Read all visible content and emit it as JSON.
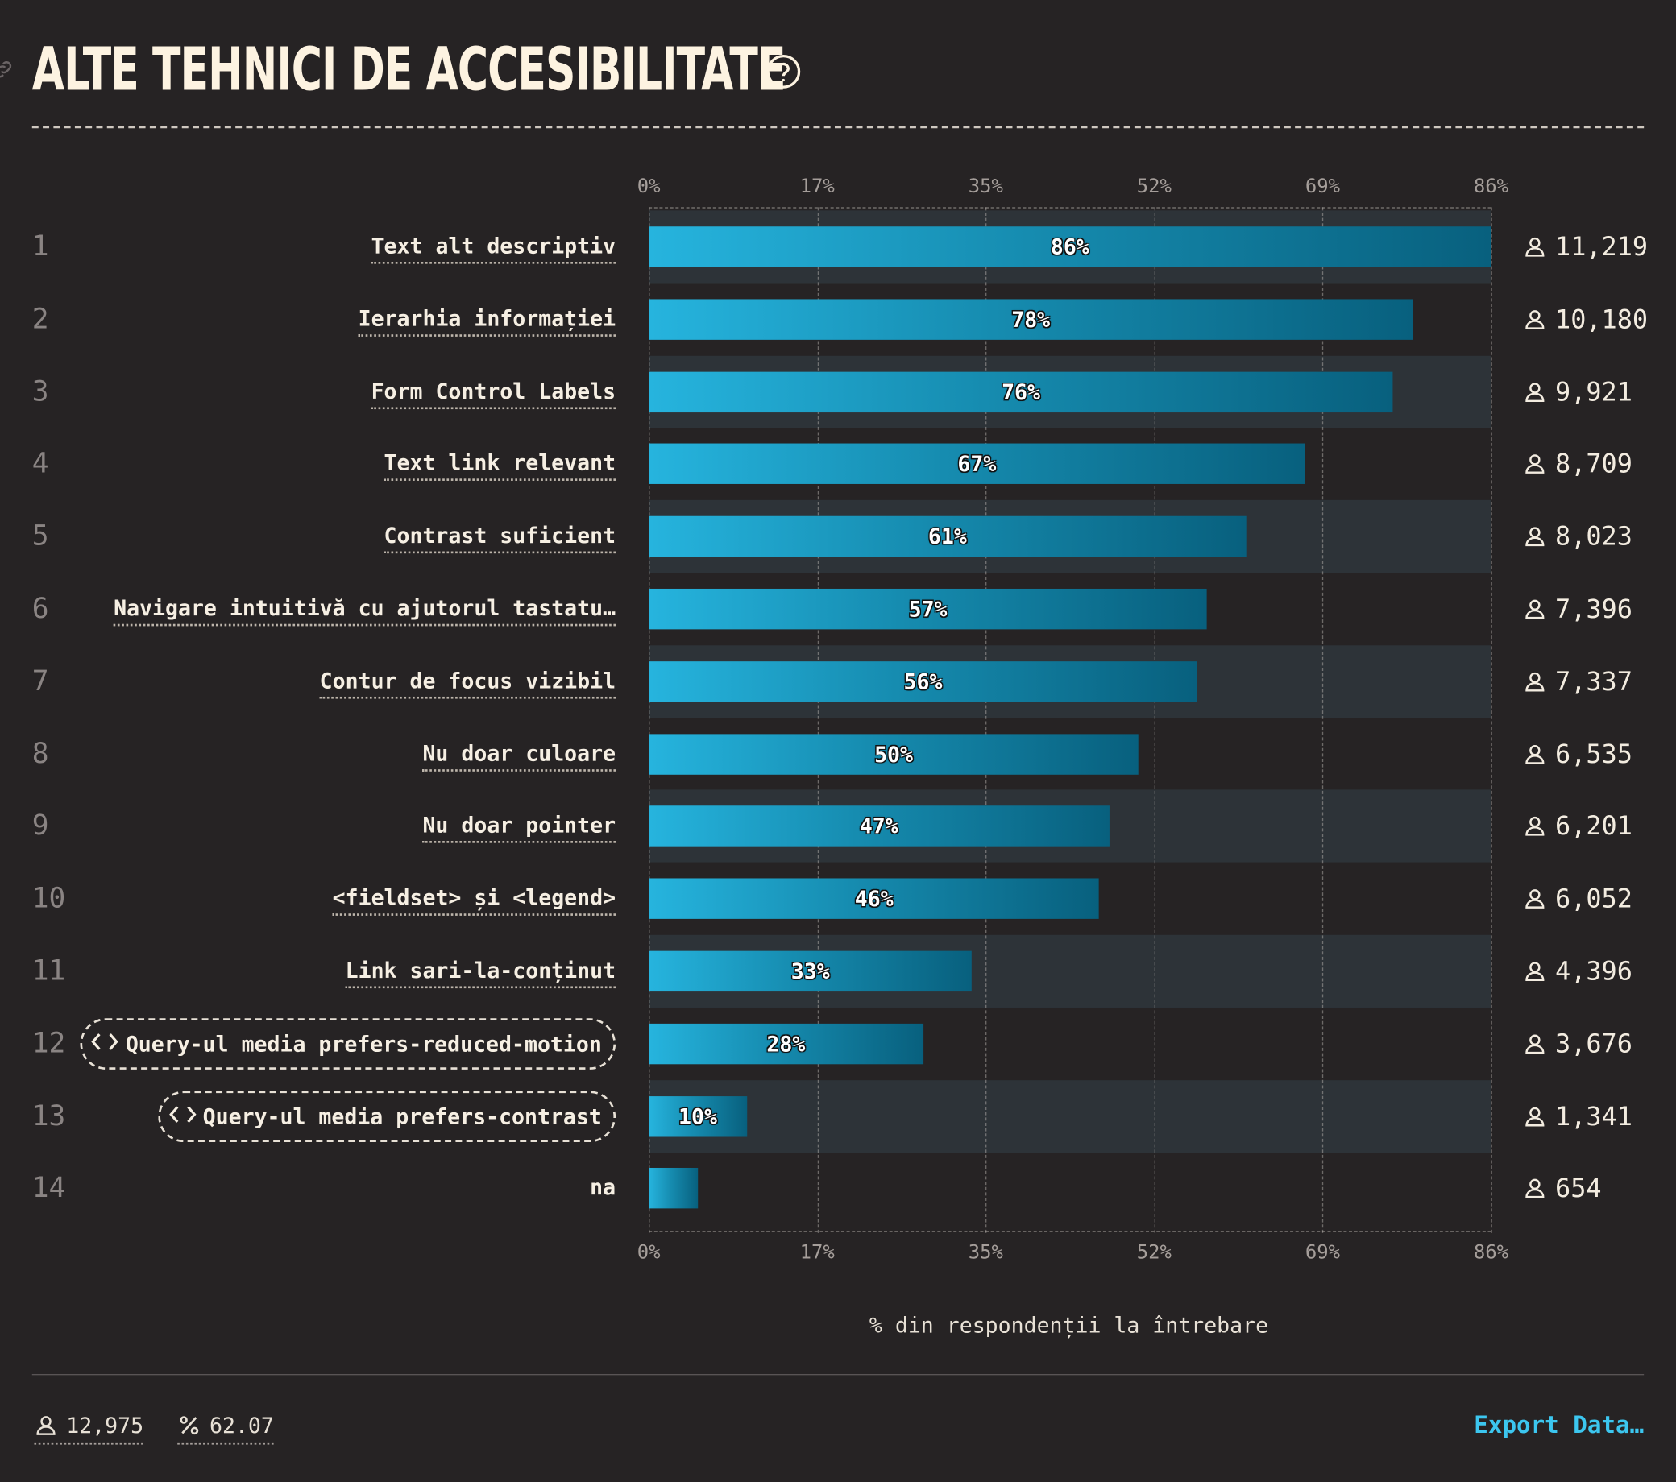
{
  "header": {
    "title": "ALTE TEHNICI DE ACCESIBILITATE"
  },
  "chart_data": {
    "type": "bar",
    "orientation": "horizontal",
    "xlabel": "% din respondenții la întrebare",
    "xlim": [
      0,
      86
    ],
    "ticks": [
      "0%",
      "17%",
      "35%",
      "52%",
      "69%",
      "86%"
    ],
    "tick_values": [
      0,
      17.2,
      34.4,
      51.6,
      68.8,
      86
    ],
    "grid": true,
    "categories": [
      "Text alt descriptiv",
      "Ierarhia informației",
      "Form Control Labels",
      "Text link relevant",
      "Contrast suficient",
      "Navigare intuitivă cu ajutorul tastatu…",
      "Contur de focus vizibil",
      "Nu doar culoare",
      "Nu doar pointer",
      "<fieldset> și <legend>",
      "Link sari-la-conținut",
      "Query-ul media prefers-reduced-motion",
      "Query-ul media prefers-contrast",
      "na"
    ],
    "values": [
      86,
      78,
      76,
      67,
      61,
      57,
      56,
      50,
      47,
      46,
      33,
      28,
      10,
      5
    ],
    "value_labels": [
      "86%",
      "78%",
      "76%",
      "67%",
      "61%",
      "57%",
      "56%",
      "50%",
      "47%",
      "46%",
      "33%",
      "28%",
      "10%",
      ""
    ],
    "counts": [
      "11,219",
      "10,180",
      "9,921",
      "8,709",
      "8,023",
      "7,396",
      "7,337",
      "6,535",
      "6,201",
      "6,052",
      "4,396",
      "3,676",
      "1,341",
      "654"
    ],
    "ranks": [
      "1",
      "2",
      "3",
      "4",
      "5",
      "6",
      "7",
      "8",
      "9",
      "10",
      "11",
      "12",
      "13",
      "14"
    ],
    "label_styles": [
      "dotted",
      "dotted",
      "dotted",
      "dotted",
      "dotted",
      "dotted",
      "dotted",
      "dotted",
      "dotted",
      "dotted",
      "dotted",
      "code-pill",
      "code-pill",
      "plain"
    ],
    "colors": {
      "bar_start": "#26b4de",
      "bar_end": "#08607e",
      "band": "#2d3338",
      "background": "#262324",
      "accent": "#3cc6ef"
    }
  },
  "footer": {
    "respondents": "12,975",
    "percent": "62.07",
    "export_label": "Export Data…",
    "icons": [
      "user-icon",
      "percent-icon"
    ]
  }
}
